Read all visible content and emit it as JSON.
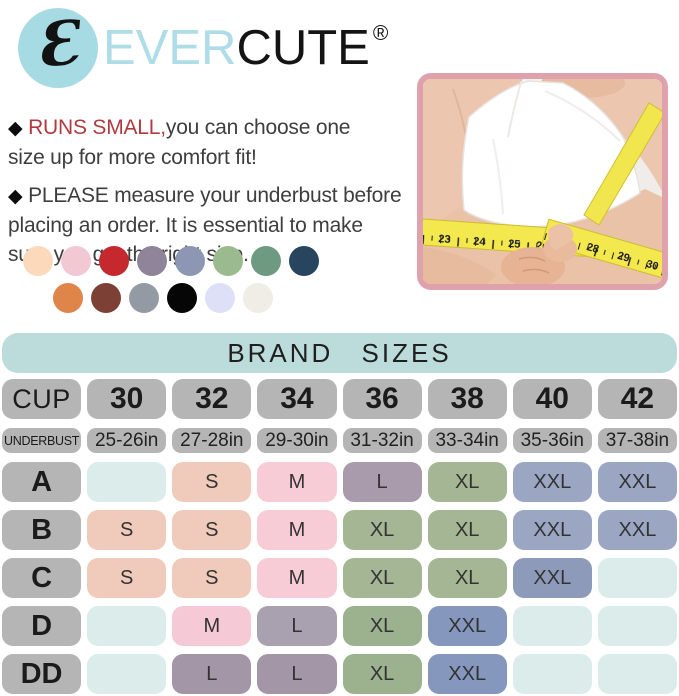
{
  "brand": {
    "logo_letter": "Ɛ",
    "name_light": "EVER",
    "name_dark": "CUTE",
    "registered": "®"
  },
  "notes": [
    {
      "bullet": "◆",
      "lead": "RUNS SMALL,",
      "text": "you can choose one\nsize up for more comfort fit!"
    },
    {
      "bullet": "◆",
      "lead": "PLEASE",
      "text": "measure your underbust before\nplacing an order. It is essential to make\nsure you get the right size."
    }
  ],
  "swatches": {
    "row1": [
      {
        "name": "peach",
        "color": "#fcd9ba"
      },
      {
        "name": "pink",
        "color": "#f2c8d3"
      },
      {
        "name": "red",
        "color": "#c5292d"
      },
      {
        "name": "mauve",
        "color": "#8f8499"
      },
      {
        "name": "slate-blue",
        "color": "#8d96b2"
      },
      {
        "name": "sage",
        "color": "#9cba90"
      },
      {
        "name": "green",
        "color": "#6d9a80"
      },
      {
        "name": "navy",
        "color": "#27455f"
      }
    ],
    "row2": [
      {
        "name": "orange",
        "color": "#e08549"
      },
      {
        "name": "brown",
        "color": "#7c4035"
      },
      {
        "name": "gray",
        "color": "#949aa4"
      },
      {
        "name": "black",
        "color": "#060606"
      },
      {
        "name": "lavender",
        "color": "#dee0f8"
      },
      {
        "name": "ivory",
        "color": "#f0ece6"
      }
    ]
  },
  "photo": {
    "tape_numbers": [
      "23",
      "24",
      "25",
      "26",
      "27",
      "28",
      "29",
      "30"
    ]
  },
  "table": {
    "title": "BRAND SIZES",
    "cup_row": [
      "CUP",
      "30",
      "32",
      "34",
      "36",
      "38",
      "40",
      "42"
    ],
    "underbust_row": [
      "UNDERBUST",
      "25-26in",
      "27-28in",
      "29-30in",
      "31-32in",
      "33-34in",
      "35-36in",
      "37-38in"
    ],
    "rows": [
      {
        "label": "A",
        "cells": [
          {
            "t": "",
            "c": "#dbeceb"
          },
          {
            "t": "S",
            "c": "#f0cbbc"
          },
          {
            "t": "M",
            "c": "#f7ccd7"
          },
          {
            "t": "L",
            "c": "#a99aac"
          },
          {
            "t": "XL",
            "c": "#a4b693"
          },
          {
            "t": "XXL",
            "c": "#9ba6c3"
          },
          {
            "t": "XXL",
            "c": "#9ba6c3"
          }
        ]
      },
      {
        "label": "B",
        "cells": [
          {
            "t": "S",
            "c": "#f0cbbc"
          },
          {
            "t": "S",
            "c": "#f0cbbc"
          },
          {
            "t": "M",
            "c": "#f7ccd7"
          },
          {
            "t": "XL",
            "c": "#a4b693"
          },
          {
            "t": "XL",
            "c": "#a4b693"
          },
          {
            "t": "XXL",
            "c": "#9ba6c3"
          },
          {
            "t": "XXL",
            "c": "#9ba6c3"
          }
        ]
      },
      {
        "label": "C",
        "cells": [
          {
            "t": "S",
            "c": "#f0cbbc"
          },
          {
            "t": "S",
            "c": "#f0cbbc"
          },
          {
            "t": "M",
            "c": "#f7ccd7"
          },
          {
            "t": "XL",
            "c": "#a4b693"
          },
          {
            "t": "XL",
            "c": "#a4b693"
          },
          {
            "t": "XXL",
            "c": "#8e9aba"
          },
          {
            "t": "",
            "c": "#dbeceb"
          }
        ]
      },
      {
        "label": "D",
        "cells": [
          {
            "t": "",
            "c": "#dbeceb"
          },
          {
            "t": "M",
            "c": "#f6c9d6"
          },
          {
            "t": "L",
            "c": "#aaa1b0"
          },
          {
            "t": "XL",
            "c": "#9cb28e"
          },
          {
            "t": "XXL",
            "c": "#8597bd"
          },
          {
            "t": "",
            "c": "#dbeceb"
          },
          {
            "t": "",
            "c": "#dbeceb"
          }
        ]
      },
      {
        "label": "DD",
        "cells": [
          {
            "t": "",
            "c": "#dbeceb"
          },
          {
            "t": "L",
            "c": "#a396a6"
          },
          {
            "t": "L",
            "c": "#a396a6"
          },
          {
            "t": "XL",
            "c": "#9cb28e"
          },
          {
            "t": "XXL",
            "c": "#8597bd"
          },
          {
            "t": "",
            "c": "#dbeceb"
          },
          {
            "t": "",
            "c": "#dbeceb"
          }
        ]
      }
    ]
  }
}
